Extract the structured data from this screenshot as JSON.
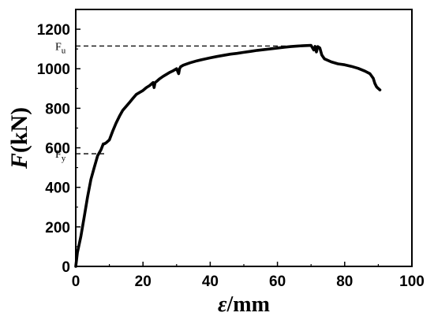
{
  "chart_data": {
    "type": "line",
    "xlabel": {
      "symbol": "ε",
      "unit": "/mm"
    },
    "ylabel": {
      "symbol": "F",
      "unit": "(kN)"
    },
    "xlim": [
      0,
      100
    ],
    "ylim": [
      0,
      1300
    ],
    "xticks": [
      0,
      20,
      40,
      60,
      80,
      100
    ],
    "yticks": [
      0,
      200,
      400,
      600,
      800,
      1000,
      1200
    ],
    "grid": false,
    "series": [
      {
        "x": [
          0,
          0.5,
          1.5,
          2.5,
          3.5,
          4.5,
          5.5,
          6.5,
          7.5,
          8.2,
          8.5,
          9.0,
          10,
          11,
          12,
          13,
          14,
          15,
          16,
          17,
          18,
          19,
          20,
          21,
          22,
          23,
          23.3,
          23.6,
          24,
          25,
          26,
          27,
          28,
          29,
          30,
          30.6,
          30.9,
          31.2,
          32,
          34,
          36,
          38,
          40,
          42,
          44,
          46,
          48,
          50,
          52,
          54,
          56,
          58,
          60,
          62,
          64,
          66,
          68,
          70,
          70.8,
          71.2,
          71.6,
          72.0,
          72.6,
          73.2,
          74,
          76,
          78,
          80,
          82,
          84,
          86,
          87.5,
          88.5,
          89,
          89.5,
          90,
          90.5
        ],
        "y": [
          0,
          70,
          150,
          250,
          350,
          440,
          500,
          560,
          590,
          620,
          620,
          625,
          640,
          685,
          725,
          760,
          790,
          810,
          830,
          850,
          870,
          880,
          890,
          905,
          915,
          930,
          905,
          930,
          935,
          950,
          962,
          972,
          982,
          990,
          1000,
          975,
          1000,
          1010,
          1018,
          1030,
          1040,
          1048,
          1055,
          1062,
          1068,
          1074,
          1078,
          1083,
          1088,
          1093,
          1097,
          1101,
          1105,
          1109,
          1112,
          1115,
          1117,
          1118,
          1095,
          1113,
          1085,
          1112,
          1105,
          1070,
          1050,
          1035,
          1025,
          1020,
          1012,
          1002,
          988,
          975,
          952,
          925,
          908,
          900,
          893
        ]
      }
    ],
    "reference_lines": [
      {
        "label_main": "F",
        "label_sub": "u",
        "y": 1115,
        "x_end": 70
      },
      {
        "label_main": "F",
        "label_sub": "y",
        "y": 570,
        "x_end": 8.5
      }
    ]
  }
}
